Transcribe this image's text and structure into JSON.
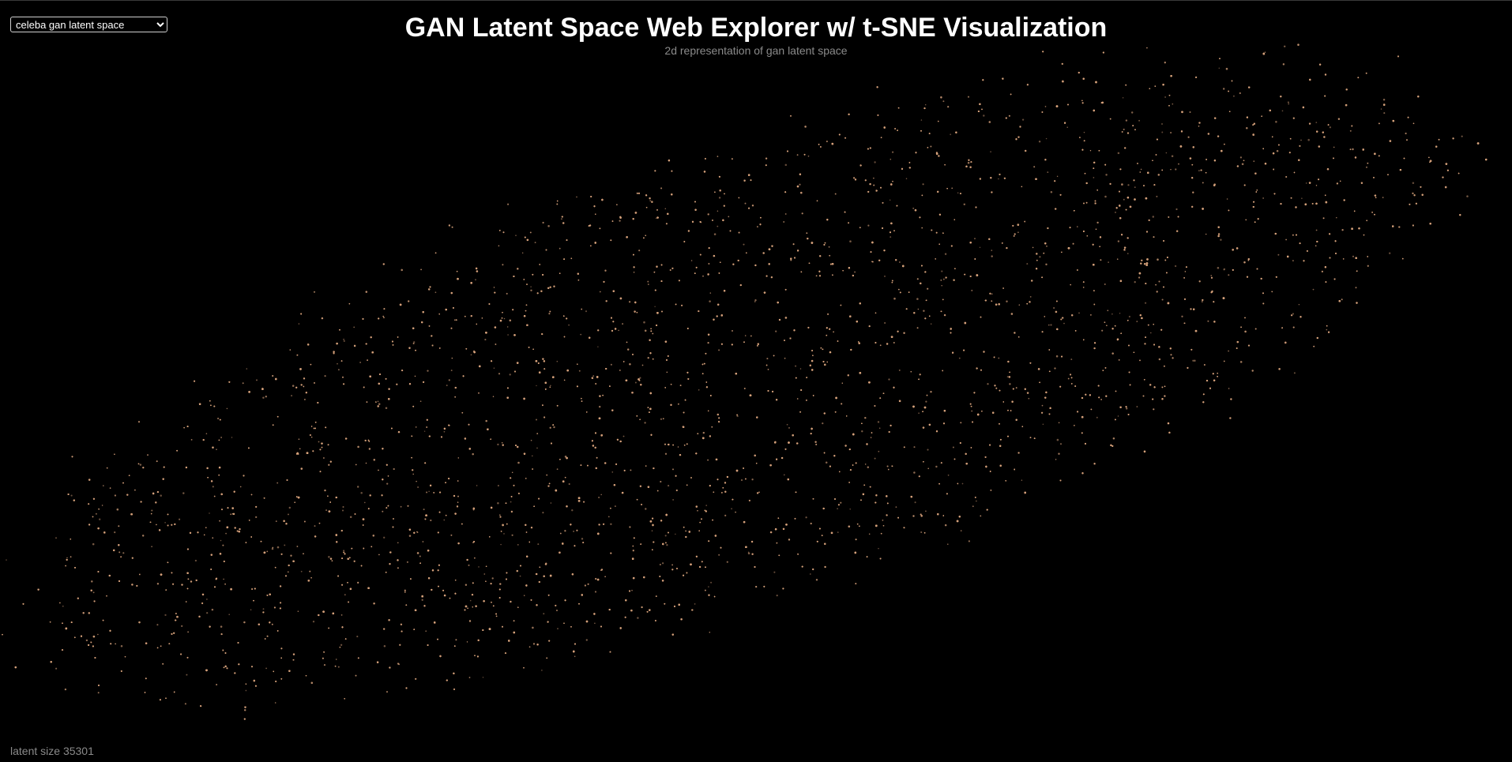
{
  "dataset_select": {
    "selected": "celeba gan latent space",
    "options": [
      "celeba gan latent space"
    ]
  },
  "header": {
    "title": "GAN Latent Space Web Explorer w/ t-SNE Visualization",
    "subtitle": "2d representation of gan latent space"
  },
  "status": {
    "latent_size_label": "latent size",
    "latent_size_value": "35301"
  },
  "colors": {
    "background": "#000000",
    "point": "#d4a07a",
    "title": "#ffffff",
    "muted": "#8a8a8a"
  },
  "chart_data": {
    "type": "scatter",
    "title": "",
    "xlabel": "",
    "ylabel": "",
    "point_count": 35301,
    "distribution": "elongated diagonal cloud of t-SNE embedded latent points, dense in the center, running from lower-left to upper-right",
    "axes_visible": false,
    "grid": false
  }
}
